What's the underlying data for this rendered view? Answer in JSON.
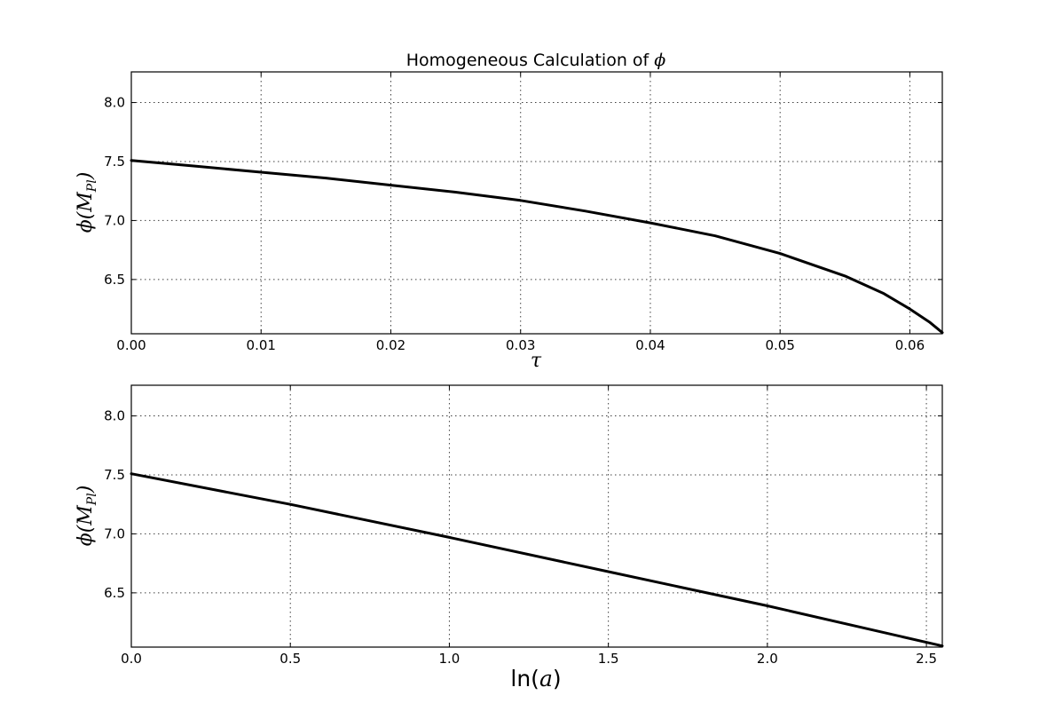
{
  "chart_data": [
    {
      "type": "line",
      "title_prefix": "Homogeneous Calculation of ",
      "title_symbol": "ϕ",
      "xlabel_symbol": "τ",
      "ylabel_symbol": "ϕ",
      "ylabel_rest": "(M",
      "ylabel_sub": "Pl",
      "ylabel_close": ")",
      "xlim": [
        0.0,
        0.0625
      ],
      "ylim": [
        6.04,
        8.26
      ],
      "xticks": [
        0.0,
        0.01,
        0.02,
        0.03,
        0.04,
        0.05,
        0.06
      ],
      "xtick_labels": [
        "0.00",
        "0.01",
        "0.02",
        "0.03",
        "0.04",
        "0.05",
        "0.06"
      ],
      "yticks": [
        6.5,
        7.0,
        7.5,
        8.0
      ],
      "ytick_labels": [
        "6.5",
        "7.0",
        "7.5",
        "8.0"
      ],
      "grid": true,
      "series": [
        {
          "color": "#000000",
          "x": [
            0.0,
            0.005,
            0.01,
            0.015,
            0.02,
            0.025,
            0.03,
            0.035,
            0.04,
            0.045,
            0.05,
            0.055,
            0.058,
            0.06,
            0.0615,
            0.0625
          ],
          "y": [
            7.51,
            7.46,
            7.41,
            7.36,
            7.3,
            7.24,
            7.17,
            7.08,
            6.98,
            6.87,
            6.72,
            6.53,
            6.38,
            6.25,
            6.14,
            6.05
          ]
        }
      ]
    },
    {
      "type": "line",
      "xlabel_prefix": "ln(",
      "xlabel_symbol": "a",
      "xlabel_close": ")",
      "ylabel_symbol": "ϕ",
      "ylabel_rest": "(M",
      "ylabel_sub": "Pl",
      "ylabel_close": ")",
      "xlim": [
        0.0,
        2.55
      ],
      "ylim": [
        6.04,
        8.26
      ],
      "xticks": [
        0.0,
        0.5,
        1.0,
        1.5,
        2.0,
        2.5
      ],
      "xtick_labels": [
        "0.0",
        "0.5",
        "1.0",
        "1.5",
        "2.0",
        "2.5"
      ],
      "yticks": [
        6.5,
        7.0,
        7.5,
        8.0
      ],
      "ytick_labels": [
        "6.5",
        "7.0",
        "7.5",
        "8.0"
      ],
      "grid": true,
      "series": [
        {
          "color": "#000000",
          "x": [
            0.0,
            0.5,
            1.0,
            1.5,
            2.0,
            2.55
          ],
          "y": [
            7.51,
            7.25,
            6.97,
            6.68,
            6.39,
            6.05
          ]
        }
      ]
    }
  ]
}
